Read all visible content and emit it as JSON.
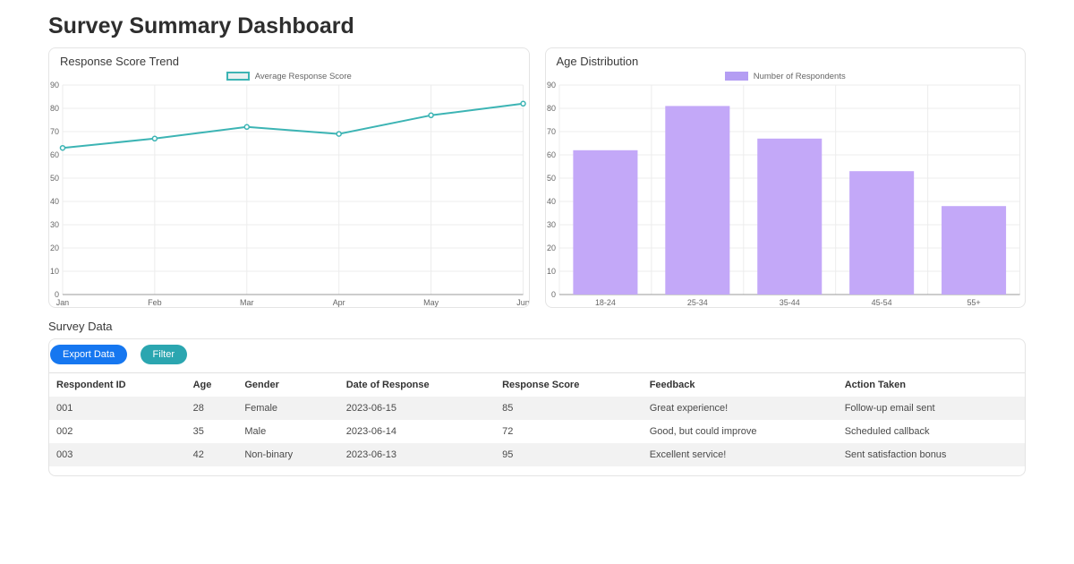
{
  "page": {
    "title": "Survey Summary Dashboard"
  },
  "chart_data": [
    {
      "type": "line",
      "title": "Response Score Trend",
      "legend": "Average Response Score",
      "categories": [
        "Jan",
        "Feb",
        "Mar",
        "Apr",
        "May",
        "Jun"
      ],
      "values": [
        63,
        67,
        72,
        69,
        77,
        82
      ],
      "ylim": [
        0,
        90
      ],
      "ytick_step": 10,
      "grid": true,
      "legend_position": "top",
      "line_color": "#3cb4b4",
      "legend_swatch_fill": "#e9f1f1",
      "legend_swatch_border": "#3cb4b4"
    },
    {
      "type": "bar",
      "title": "Age Distribution",
      "legend": "Number of Respondents",
      "categories": [
        "18-24",
        "25-34",
        "35-44",
        "45-54",
        "55+"
      ],
      "values": [
        62,
        81,
        67,
        53,
        38
      ],
      "ylim": [
        0,
        90
      ],
      "ytick_step": 10,
      "grid": true,
      "legend_position": "top",
      "bar_color": "#c3a8f8",
      "legend_swatch_fill": "#b49df3",
      "legend_swatch_border": "#b49df3"
    }
  ],
  "survey_section": {
    "title": "Survey Data",
    "buttons": {
      "export_label": "Export Data",
      "filter_label": "Filter",
      "export_color": "#1677f0",
      "filter_color": "#2ba6b0"
    },
    "table": {
      "headers": [
        "Respondent ID",
        "Age",
        "Gender",
        "Date of Response",
        "Response Score",
        "Feedback",
        "Action Taken"
      ],
      "col_widths": [
        "14%",
        "5.3%",
        "10.4%",
        "16%",
        "15.1%",
        "20%",
        ""
      ],
      "rows": [
        [
          "001",
          "28",
          "Female",
          "2023-06-15",
          "85",
          "Great experience!",
          "Follow-up email sent"
        ],
        [
          "002",
          "35",
          "Male",
          "2023-06-14",
          "72",
          "Good, but could improve",
          "Scheduled callback"
        ],
        [
          "003",
          "42",
          "Non-binary",
          "2023-06-13",
          "95",
          "Excellent service!",
          "Sent satisfaction bonus"
        ]
      ]
    }
  }
}
